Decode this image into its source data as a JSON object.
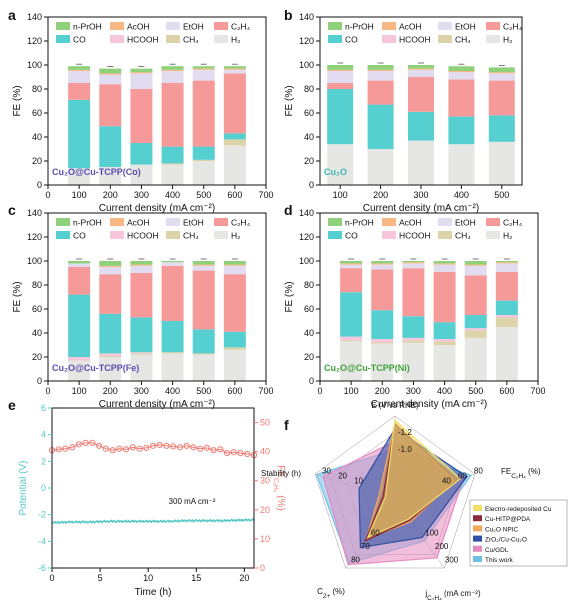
{
  "legend": [
    {
      "name": "n-PrOH",
      "color": "#8fd07a"
    },
    {
      "name": "AcOH",
      "color": "#f8b884"
    },
    {
      "name": "EtOH",
      "color": "#e2dcf1"
    },
    {
      "name": "C2H4",
      "label": "C₂H₄",
      "color": "#f59a98"
    },
    {
      "name": "CO",
      "color": "#56cfd0"
    },
    {
      "name": "HCOOH",
      "color": "#f6c7dc"
    },
    {
      "name": "CH4",
      "label": "CH₄",
      "color": "#dcd3a8"
    },
    {
      "name": "H2",
      "label": "H₂",
      "color": "#e6e6e4"
    }
  ],
  "chart_data": [
    {
      "panel": "a",
      "type": "bar",
      "stacked": true,
      "xlabel": "Current density (mA cm⁻²)",
      "ylabel": "FE (%)",
      "xlim": [
        0,
        700
      ],
      "ylim": [
        0,
        140
      ],
      "xticks": [
        "0",
        "100",
        "200",
        "300",
        "400",
        "500",
        "600",
        "700"
      ],
      "yticks": [
        "0",
        "20",
        "40",
        "60",
        "80",
        "100",
        "120",
        "140"
      ],
      "categories": [
        100,
        200,
        300,
        400,
        500,
        600
      ],
      "inset_label": "Cu₂O@Cu-TCPP(Co)",
      "inset_color": "#5a4fb0",
      "series": [
        {
          "name": "H2",
          "values": [
            14,
            15,
            17,
            17,
            20,
            33
          ]
        },
        {
          "name": "CH4",
          "values": [
            0,
            0,
            0,
            1,
            1,
            5
          ]
        },
        {
          "name": "HCOOH",
          "values": [
            0,
            0,
            0,
            0,
            0,
            0
          ]
        },
        {
          "name": "CO",
          "values": [
            57,
            34,
            18,
            14,
            11,
            5
          ]
        },
        {
          "name": "C2H4",
          "values": [
            14,
            35,
            45,
            53,
            55,
            50
          ]
        },
        {
          "name": "EtOH",
          "values": [
            10,
            8,
            13,
            10,
            9,
            3
          ]
        },
        {
          "name": "AcOH",
          "values": [
            1,
            1,
            1,
            1,
            1,
            1
          ]
        },
        {
          "name": "n-PrOH",
          "values": [
            3,
            4,
            3,
            3,
            2,
            2
          ]
        }
      ]
    },
    {
      "panel": "b",
      "type": "bar",
      "stacked": true,
      "xlabel": "Current density (mA cm⁻²)",
      "ylabel": "FE (%)",
      "xlim": [
        50,
        550
      ],
      "ylim": [
        0,
        140
      ],
      "xticks": [
        "100",
        "200",
        "300",
        "400",
        "500"
      ],
      "yticks": [
        "0",
        "20",
        "40",
        "60",
        "80",
        "100",
        "120",
        "140"
      ],
      "categories": [
        100,
        200,
        300,
        400,
        500
      ],
      "inset_label": "Cu₂O",
      "inset_color": "#3ab6b0",
      "series": [
        {
          "name": "H2",
          "values": [
            34,
            30,
            37,
            34,
            36
          ]
        },
        {
          "name": "CH4",
          "values": [
            0,
            0,
            0,
            0,
            0
          ]
        },
        {
          "name": "HCOOH",
          "values": [
            0,
            0,
            0,
            0,
            0
          ]
        },
        {
          "name": "CO",
          "values": [
            46,
            37,
            24,
            23,
            22
          ]
        },
        {
          "name": "C2H4",
          "values": [
            5,
            20,
            29,
            31,
            29
          ]
        },
        {
          "name": "EtOH",
          "values": [
            10,
            8,
            6,
            6,
            6
          ]
        },
        {
          "name": "AcOH",
          "values": [
            1,
            1,
            1,
            1,
            1
          ]
        },
        {
          "name": "n-PrOH",
          "values": [
            4,
            4,
            3,
            4,
            4
          ]
        }
      ]
    },
    {
      "panel": "c",
      "type": "bar",
      "stacked": true,
      "xlabel": "Current density (mA cm⁻²)",
      "ylabel": "FE (%)",
      "xlim": [
        0,
        700
      ],
      "ylim": [
        0,
        140
      ],
      "xticks": [
        "0",
        "100",
        "200",
        "300",
        "400",
        "500",
        "600",
        "700"
      ],
      "yticks": [
        "0",
        "20",
        "40",
        "60",
        "80",
        "100",
        "120",
        "140"
      ],
      "categories": [
        100,
        200,
        300,
        400,
        500,
        600
      ],
      "inset_label": "Cu₂O@Cu-TCPP(Fe)",
      "inset_color": "#5a4fb0",
      "series": [
        {
          "name": "H2",
          "values": [
            17,
            20,
            22,
            23,
            22,
            26
          ]
        },
        {
          "name": "CH4",
          "values": [
            0,
            1,
            1,
            1,
            1,
            2
          ]
        },
        {
          "name": "HCOOH",
          "values": [
            3,
            2,
            1,
            0,
            0,
            0
          ]
        },
        {
          "name": "CO",
          "values": [
            52,
            33,
            29,
            26,
            20,
            13
          ]
        },
        {
          "name": "C2H4",
          "values": [
            23,
            33,
            37,
            46,
            49,
            48
          ]
        },
        {
          "name": "EtOH",
          "values": [
            3,
            6,
            6,
            3,
            4,
            7
          ]
        },
        {
          "name": "AcOH",
          "values": [
            0,
            1,
            1,
            0,
            1,
            1
          ]
        },
        {
          "name": "n-PrOH",
          "values": [
            2,
            4,
            3,
            1,
            3,
            3
          ]
        }
      ]
    },
    {
      "panel": "d",
      "type": "bar",
      "stacked": true,
      "xlabel": "Current density (mA cm⁻²)",
      "ylabel": "FE (%)",
      "xlim": [
        0,
        700
      ],
      "ylim": [
        0,
        140
      ],
      "xticks": [
        "0",
        "100",
        "200",
        "300",
        "400",
        "500",
        "600",
        "700"
      ],
      "yticks": [
        "0",
        "20",
        "40",
        "60",
        "80",
        "100",
        "120",
        "140"
      ],
      "categories": [
        100,
        200,
        300,
        400,
        500,
        600
      ],
      "inset_label": "Cu₂O@Cu-TCPP(Ni)",
      "inset_color": "#3ea33a",
      "series": [
        {
          "name": "H2",
          "values": [
            33,
            31,
            32,
            30,
            36,
            45
          ]
        },
        {
          "name": "CH4",
          "values": [
            1,
            1,
            2,
            3,
            6,
            8
          ]
        },
        {
          "name": "HCOOH",
          "values": [
            3,
            3,
            2,
            2,
            2,
            2
          ]
        },
        {
          "name": "CO",
          "values": [
            37,
            24,
            18,
            14,
            11,
            12
          ]
        },
        {
          "name": "C2H4",
          "values": [
            20,
            34,
            40,
            42,
            33,
            24
          ]
        },
        {
          "name": "EtOH",
          "values": [
            3,
            4,
            4,
            6,
            8,
            7
          ]
        },
        {
          "name": "AcOH",
          "values": [
            1,
            1,
            1,
            1,
            1,
            1
          ]
        },
        {
          "name": "n-PrOH",
          "values": [
            2,
            2,
            1,
            2,
            3,
            1
          ]
        }
      ]
    },
    {
      "panel": "e",
      "type": "line",
      "xlabel": "Time (h)",
      "ylabel_left": "Potential (V)",
      "ylabel_right": "FE",
      "ylabel_right_sub": "C₂H₄",
      "ylabel_right_unit": " (%)",
      "xlim": [
        0,
        21
      ],
      "ylim_left": [
        -6,
        6
      ],
      "ylim_right": [
        0,
        55
      ],
      "xticks": [
        "0",
        "5",
        "10",
        "15",
        "20"
      ],
      "yticks_left": [
        "-6",
        "-4",
        "-2",
        "0",
        "2",
        "4",
        "6"
      ],
      "yticks_right": [
        "0",
        "10",
        "20",
        "30",
        "40",
        "50"
      ],
      "annotation": "300 mA cm⁻²",
      "series": [
        {
          "name": "Potential",
          "axis": "left",
          "color": "#55c8c6",
          "x": [
            0,
            2,
            4,
            6,
            8,
            10,
            12,
            14,
            16,
            18,
            20,
            21
          ],
          "y": [
            -2.6,
            -2.55,
            -2.55,
            -2.5,
            -2.5,
            -2.5,
            -2.5,
            -2.45,
            -2.45,
            -2.45,
            -2.4,
            -2.4
          ]
        },
        {
          "name": "FE C2H4",
          "axis": "right",
          "color": "#f07a72",
          "x": [
            0,
            0.7,
            1.4,
            2.1,
            2.8,
            3.5,
            4.2,
            4.9,
            5.6,
            6.3,
            7,
            7.7,
            8.4,
            9.1,
            9.8,
            10.5,
            11.2,
            11.9,
            12.6,
            13.3,
            14,
            14.7,
            15.4,
            16.1,
            16.8,
            17.5,
            18.2,
            18.9,
            19.6,
            20.3,
            21
          ],
          "y": [
            40.5,
            40.8,
            41,
            41.5,
            42.5,
            43,
            43,
            42,
            41,
            40.5,
            41,
            40.8,
            41.5,
            41,
            41.3,
            42,
            42.3,
            42,
            41.8,
            41.5,
            42,
            41.5,
            41,
            41.3,
            40.5,
            40.8,
            39.5,
            39.8,
            39.5,
            39.2,
            38.8
          ]
        }
      ]
    },
    {
      "panel": "f",
      "type": "radar",
      "axes": [
        {
          "label": "E (V vs RHE)",
          "ticks": [
            "-1.0",
            "-1.2"
          ]
        },
        {
          "label": "FE",
          "label_sub": "C₂H₄",
          "label_unit": " (%)",
          "ticks": [
            "40",
            "60",
            "80"
          ]
        },
        {
          "label": "j",
          "label_sub": "C₂H₄",
          "label_unit": " (mA cm⁻²)",
          "ticks": [
            "100",
            "200",
            "300"
          ]
        },
        {
          "label": "C",
          "label_sub": "2+",
          "label_unit": " (%)",
          "ticks": [
            "60",
            "70",
            "80"
          ]
        },
        {
          "label": "Stability (h)",
          "ticks": [
            "10",
            "20",
            "30"
          ]
        }
      ],
      "series": [
        {
          "name": "Electro-redeposited Cu",
          "color": "#f1e06a",
          "values": [
            0.95,
            0.82,
            0.28,
            0.55,
            0.12
          ]
        },
        {
          "name": "Cu-HITP@PDA",
          "color": "#8a2a3a",
          "values": [
            0.9,
            0.78,
            0.3,
            0.6,
            0.15
          ]
        },
        {
          "name": "Cu₂O NPIC",
          "color": "#f2a65a",
          "values": [
            0.92,
            0.74,
            0.32,
            0.58,
            0.2
          ]
        },
        {
          "name": "ZrO₂/Cu-Cu₂O",
          "color": "#2e4fa3",
          "values": [
            0.85,
            0.9,
            0.55,
            0.7,
            0.45
          ]
        },
        {
          "name": "Cu/GDL",
          "color": "#e58ac0",
          "values": [
            0.7,
            0.86,
            0.85,
            0.95,
            0.9
          ]
        },
        {
          "name": "This work",
          "color": "#6fc0e6",
          "values": [
            0.6,
            0.95,
            0.6,
            0.93,
            0.98
          ]
        }
      ]
    }
  ]
}
